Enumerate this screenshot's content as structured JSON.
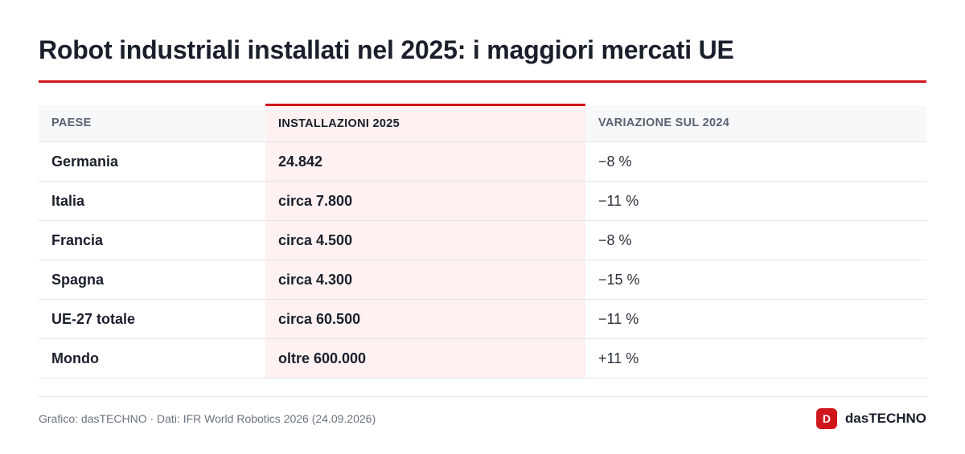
{
  "title": "Robot industriali installati nel 2025: i maggiori mercati UE",
  "colors": {
    "accent": "#d0161d",
    "highlight_bg": "#fdf1f1",
    "header_bg": "#f7f8fa"
  },
  "chart_data": {
    "type": "table",
    "title": "Robot industriali installati nel 2025: i maggiori mercati UE",
    "columns": [
      "PAESE",
      "INSTALLAZIONI 2025",
      "VARIAZIONE SUL 2024"
    ],
    "highlighted_column": "INSTALLAZIONI 2025",
    "rows": [
      [
        "Germania",
        "24.842",
        "−8 %"
      ],
      [
        "Italia",
        "circa 7.800",
        "−11 %"
      ],
      [
        "Francia",
        "circa 4.500",
        "−8 %"
      ],
      [
        "Spagna",
        "circa 4.300",
        "−15 %"
      ],
      [
        "UE-27 totale",
        "circa 60.500",
        "−11 %"
      ],
      [
        "Mondo",
        "oltre 600.000",
        "+11 %"
      ]
    ]
  },
  "footer": {
    "source": "Grafico: dasTECHNO · Dati: IFR World Robotics 2026 (24.09.2026)",
    "brand_badge": "D",
    "brand_name": "dasTECHNO"
  }
}
